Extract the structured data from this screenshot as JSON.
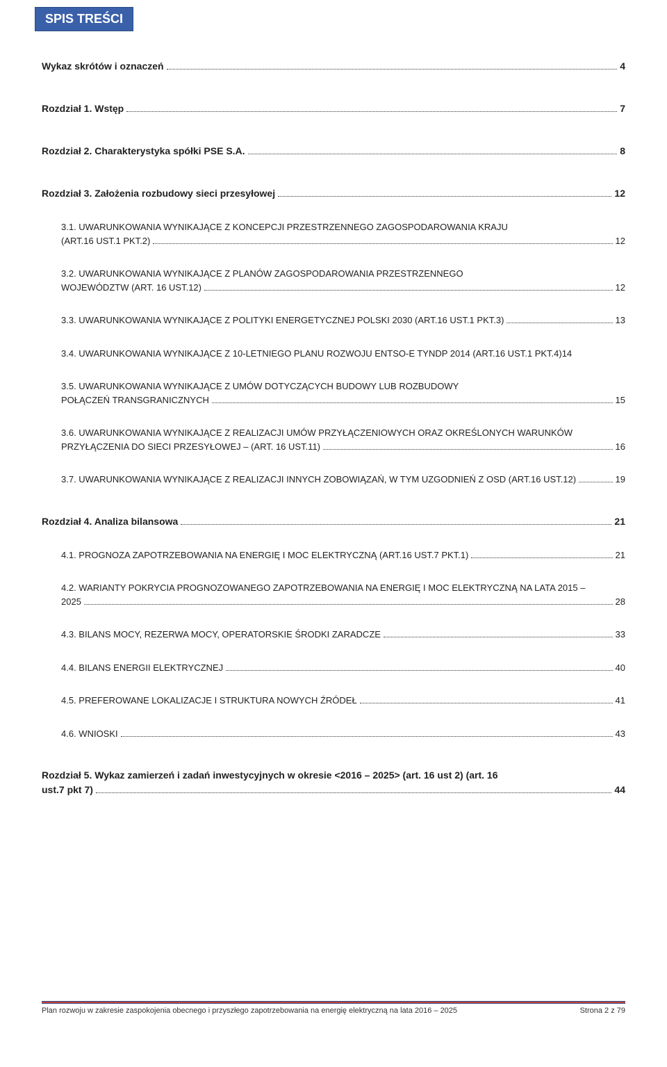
{
  "header": {
    "title": "SPIS TREŚCI"
  },
  "colors": {
    "tab_bg": "#3a60a9",
    "tab_border": "#2e4d88",
    "tab_text": "#ffffff",
    "accent_red": "#c34438",
    "text": "#222222"
  },
  "toc": [
    {
      "level": 0,
      "text": "Wykaz skrótów i oznaczeń",
      "page": "4"
    },
    {
      "level": 0,
      "text": "Rozdział 1. Wstęp",
      "page": "7"
    },
    {
      "level": 0,
      "text": "Rozdział 2. Charakterystyka spółki PSE S.A.",
      "page": "8"
    },
    {
      "level": 0,
      "text": "Rozdział 3. Założenia rozbudowy sieci przesyłowej",
      "page": "12"
    },
    {
      "level": 1,
      "text": "3.1. UWARUNKOWANIA WYNIKAJĄCE Z KONCEPCJI PRZESTRZENNEGO ZAGOSPODAROWANIA KRAJU (ART.16 UST.1 PKT.2)",
      "page": "12",
      "multiline": true,
      "split": "3.1. UWARUNKOWANIA WYNIKAJĄCE Z KONCEPCJI PRZESTRZENNEGO ZAGOSPODAROWANIA KRAJU (ART.16 UST.1 PKT.2)"
    },
    {
      "level": 1,
      "text": "3.2. UWARUNKOWANIA WYNIKAJĄCE Z PLANÓW ZAGOSPODAROWANIA PRZESTRZENNEGO WOJEWÓDZTW (ART. 16 UST.12)",
      "page": "12",
      "multiline": true
    },
    {
      "level": 1,
      "text": "3.3. UWARUNKOWANIA WYNIKAJĄCE Z POLITYKI ENERGETYCZNEJ POLSKI 2030 (ART.16 UST.1 PKT.3)",
      "page": "13"
    },
    {
      "level": 1,
      "text": "3.4. UWARUNKOWANIA WYNIKAJĄCE Z 10-LETNIEGO PLANU ROZWOJU ENTSO-E TYNDP 2014 (ART.16 UST.1 PKT.4)",
      "page": "14",
      "nodots": true
    },
    {
      "level": 1,
      "text": "3.5. UWARUNKOWANIA WYNIKAJĄCE Z UMÓW DOTYCZĄCYCH BUDOWY LUB ROZBUDOWY POŁĄCZEŃ TRANSGRANICZNYCH",
      "page": "15",
      "multiline": true
    },
    {
      "level": 1,
      "text": "3.6. UWARUNKOWANIA WYNIKAJĄCE Z REALIZACJI UMÓW PRZYŁĄCZENIOWYCH ORAZ OKREŚLONYCH WARUNKÓW PRZYŁĄCZENIA DO SIECI PRZESYŁOWEJ – (ART. 16 UST.11)",
      "page": "16",
      "multiline": true
    },
    {
      "level": 1,
      "text": "3.7. UWARUNKOWANIA WYNIKAJĄCE Z REALIZACJI INNYCH ZOBOWIĄZAŃ, W TYM UZGODNIEŃ Z OSD (ART.16 UST.12)",
      "page": "19"
    },
    {
      "level": 0,
      "text": "Rozdział 4. Analiza bilansowa",
      "page": "21"
    },
    {
      "level": 1,
      "text": "4.1. PROGNOZA ZAPOTRZEBOWANIA NA ENERGIĘ I MOC ELEKTRYCZNĄ (ART.16 UST.7 PKT.1)",
      "page": "21"
    },
    {
      "level": 1,
      "text": "4.2. WARIANTY POKRYCIA PROGNOZOWANEGO ZAPOTRZEBOWANIA NA ENERGIĘ I MOC ELEKTRYCZNĄ NA LATA 2015 – 2025",
      "page": "28",
      "multiline": true
    },
    {
      "level": 1,
      "text": "4.3. BILANS MOCY, REZERWA MOCY, OPERATORSKIE ŚRODKI ZARADCZE",
      "page": "33"
    },
    {
      "level": 1,
      "text": "4.4. BILANS ENERGII ELEKTRYCZNEJ",
      "page": "40"
    },
    {
      "level": 1,
      "text": "4.5. PREFEROWANE LOKALIZACJE I STRUKTURA NOWYCH ŹRÓDEŁ",
      "page": "41"
    },
    {
      "level": 1,
      "text": "4.6. WNIOSKI",
      "page": "43"
    },
    {
      "level": 0,
      "text": "Rozdział 5. Wykaz zamierzeń i zadań inwestycyjnych w okresie <2016 – 2025> (art. 16 ust 2) (art. 16 ust.7 pkt 7)",
      "page": "44",
      "multiline": true
    }
  ],
  "footer": {
    "left": "Plan rozwoju w zakresie zaspokojenia obecnego i przyszłego zapotrzebowania na energię elektryczną na lata 2016 – 2025",
    "right": "Strona 2 z 79"
  }
}
